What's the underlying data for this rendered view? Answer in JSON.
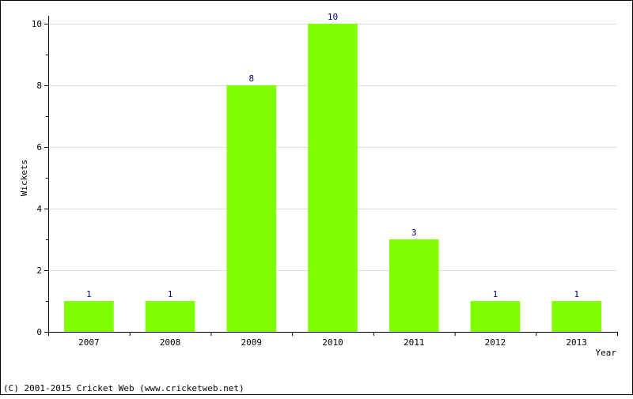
{
  "chart_data": {
    "type": "bar",
    "categories": [
      "2007",
      "2008",
      "2009",
      "2010",
      "2011",
      "2012",
      "2013"
    ],
    "values": [
      1,
      1,
      8,
      10,
      3,
      1,
      1
    ],
    "data_labels": [
      "1",
      "1",
      "8",
      "10",
      "3",
      "1",
      "1"
    ],
    "xlabel": "Year",
    "ylabel": "Wickets",
    "ylim": [
      0,
      10
    ],
    "yticks": [
      0,
      2,
      4,
      6,
      8,
      10
    ],
    "ytick_labels": [
      "0",
      "2",
      "4",
      "6",
      "8",
      "10"
    ],
    "grid": true,
    "bar_color": "#80ff00",
    "label_color": "#000080"
  },
  "footer": {
    "copyright": "(C) 2001-2015 Cricket Web (www.cricketweb.net)"
  }
}
